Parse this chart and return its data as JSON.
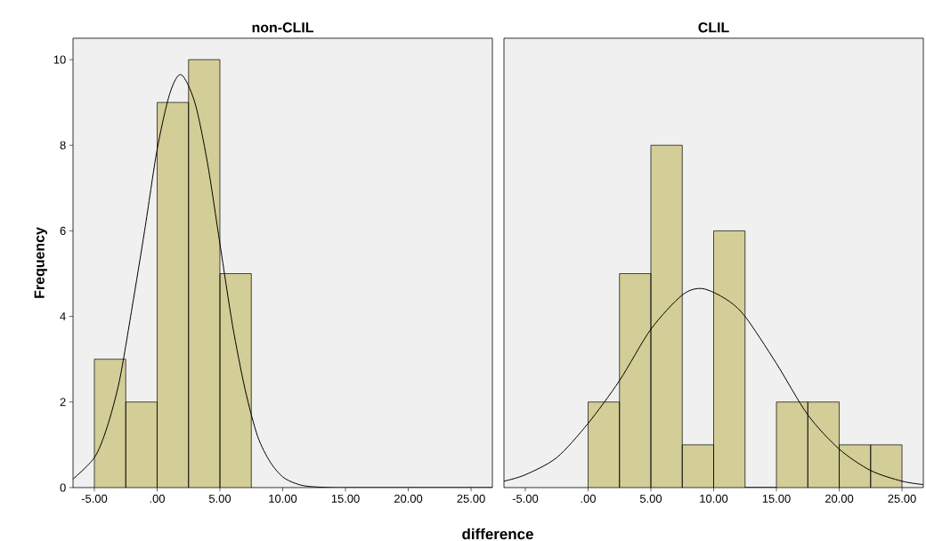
{
  "chart_data": [
    {
      "type": "histogram",
      "title": "non-CLIL",
      "xlabel": "difference",
      "ylabel": "Frequency",
      "color": "#d3cd97",
      "bins": [
        -5,
        -2.5,
        0,
        2.5,
        5,
        7.5
      ],
      "values": [
        3,
        2,
        9,
        10,
        5
      ],
      "series": [
        {
          "type": "line",
          "color": "#000000",
          "x": [
            -6.7,
            -5,
            -4,
            -3,
            -2,
            -1,
            0,
            1,
            1.9,
            3,
            4,
            5,
            6,
            7,
            8,
            9,
            10,
            11,
            12,
            14,
            16,
            20,
            26.7
          ],
          "values": [
            0.2,
            0.7,
            1.4,
            2.5,
            4.2,
            6.0,
            7.9,
            9.2,
            9.65,
            9.0,
            7.6,
            5.7,
            3.8,
            2.3,
            1.2,
            0.6,
            0.25,
            0.1,
            0.03,
            0,
            0,
            0,
            0
          ]
        }
      ],
      "xlim": [
        -6.7,
        26.7
      ],
      "ylim": [
        0,
        10.5
      ],
      "xticks": [
        {
          "value": -5,
          "label": "-5.00"
        },
        {
          "value": 0,
          "label": ".00"
        },
        {
          "value": 5,
          "label": "5.00"
        },
        {
          "value": 10,
          "label": "10.00"
        },
        {
          "value": 15,
          "label": "15.00"
        },
        {
          "value": 20,
          "label": "20.00"
        },
        {
          "value": 25,
          "label": "25.00"
        }
      ],
      "yticks": [
        0,
        2,
        4,
        6,
        8,
        10
      ],
      "grid": false
    },
    {
      "type": "histogram",
      "title": "CLIL",
      "color": "#d3cd97",
      "bins": [
        0,
        2.5,
        5,
        7.5,
        10,
        12.5,
        15,
        17.5,
        20,
        22.5,
        25
      ],
      "values": [
        2,
        5,
        8,
        1,
        6,
        0,
        2,
        2,
        1,
        1
      ],
      "series": [
        {
          "type": "line",
          "color": "#000000",
          "x": [
            -6.7,
            -5,
            -2.5,
            0,
            2.5,
            5,
            7.5,
            9.1,
            11,
            12.5,
            15,
            17.5,
            20,
            22.5,
            25,
            26.7
          ],
          "values": [
            0.15,
            0.3,
            0.7,
            1.5,
            2.5,
            3.7,
            4.5,
            4.65,
            4.4,
            4.0,
            2.9,
            1.7,
            0.9,
            0.4,
            0.15,
            0.07
          ]
        }
      ],
      "xlim": [
        -6.7,
        26.7
      ],
      "ylim": [
        0,
        10.5
      ],
      "xticks": [
        {
          "value": -5,
          "label": "-5.00"
        },
        {
          "value": 0,
          "label": ".00"
        },
        {
          "value": 5,
          "label": "5.00"
        },
        {
          "value": 10,
          "label": "10.00"
        },
        {
          "value": 15,
          "label": "15.00"
        },
        {
          "value": 20,
          "label": "20.00"
        },
        {
          "value": 25,
          "label": "25.00"
        }
      ],
      "tick_labels": "x",
      "grid": false
    }
  ]
}
